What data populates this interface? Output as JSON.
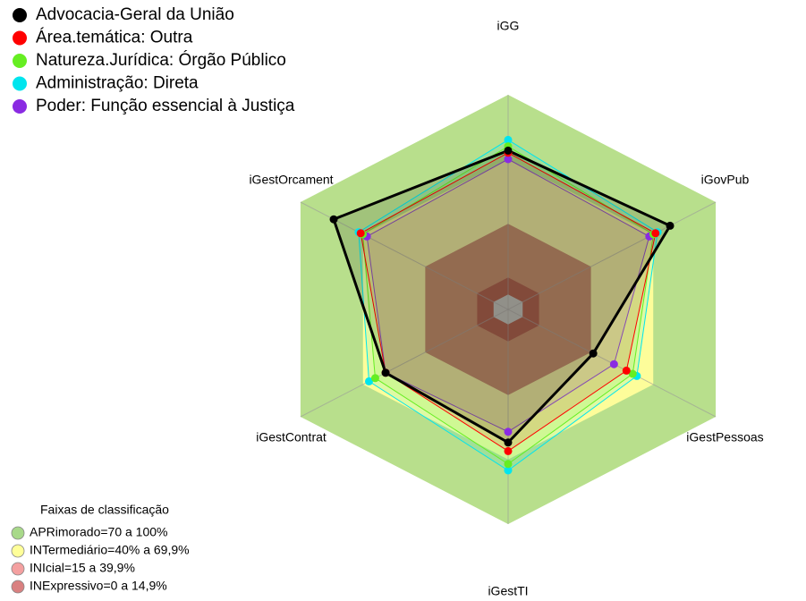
{
  "chart_data": {
    "type": "radar",
    "categories": [
      "iGG",
      "iGovPub",
      "iGestPessoas",
      "iGestTI",
      "iGestContrat",
      "iGestOrcament"
    ],
    "rlim": [
      0,
      100
    ],
    "series": [
      {
        "name": "Advocacia-Geral da União",
        "color": "#000000",
        "values": [
          74,
          78,
          41,
          62,
          59,
          84
        ]
      },
      {
        "name": "Área.temática: Outra",
        "color": "#ff0000",
        "values": [
          73,
          71,
          57,
          66,
          59,
          71
        ]
      },
      {
        "name": "Natureza.Jurídica: Órgão Público",
        "color": "#66ee22",
        "values": [
          76,
          70,
          60,
          72,
          64,
          70
        ]
      },
      {
        "name": "Administração: Direta",
        "color": "#00e5ee",
        "values": [
          79,
          72,
          62,
          75,
          67,
          72
        ]
      },
      {
        "name": "Poder: Função essencial à Justiça",
        "color": "#8a2be2",
        "values": [
          70,
          68,
          51,
          57,
          59,
          68
        ]
      }
    ],
    "bands_title": "Faixas de classificação",
    "bands": [
      {
        "label": "APRimorado=70 a 100%",
        "from": 70,
        "to": 100,
        "color": "#b8df8c",
        "legend_color": "#a8d98a"
      },
      {
        "label": "INTermediário=40% a 69,9%",
        "from": 40,
        "to": 69.9,
        "color": "#fdfd9a",
        "legend_color": "#ffff99"
      },
      {
        "label": "INIcial=15 a 39,9%",
        "from": 15,
        "to": 39.9,
        "color": "#c27a52",
        "legend_color": "#f4a0a0"
      },
      {
        "label": "INExpressivo=0 a 14,9%",
        "from": 0,
        "to": 14.9,
        "color": "#a33c28",
        "legend_color": "#d98080"
      }
    ]
  }
}
